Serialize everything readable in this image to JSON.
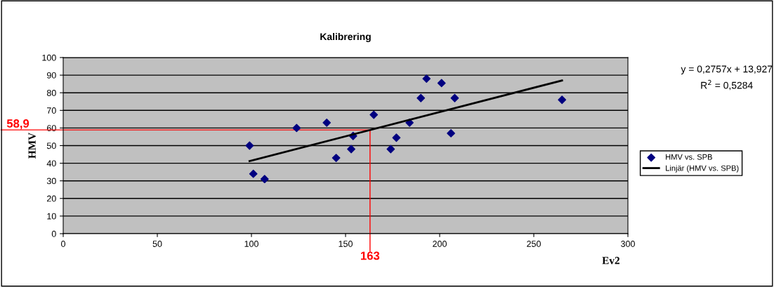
{
  "chart_data": {
    "type": "scatter",
    "title": "Kalibrering",
    "xlabel": "Ev2",
    "ylabel": "HMV",
    "xlim": [
      0,
      300
    ],
    "xticks": [
      0,
      50,
      100,
      150,
      200,
      250,
      300
    ],
    "ylim": [
      0,
      100
    ],
    "yticks": [
      0,
      10,
      20,
      30,
      40,
      50,
      60,
      70,
      80,
      90,
      100
    ],
    "grid": "y",
    "legend": "right",
    "series": [
      {
        "name": "HMV vs. SPB",
        "color": "#000080",
        "marker": "diamond",
        "x": [
          99,
          101,
          107,
          124,
          140,
          145,
          153,
          154,
          165,
          174,
          177,
          184,
          190,
          193,
          201,
          206,
          208,
          265
        ],
        "values": [
          50,
          34,
          31,
          60,
          63,
          43,
          48,
          55.5,
          67.5,
          48,
          54.5,
          63,
          77,
          88,
          85.5,
          57,
          77,
          76
        ]
      },
      {
        "name": "Linjär (HMV vs. SPB)",
        "color": "#000000",
        "type": "line",
        "x": [
          99,
          265
        ],
        "values": [
          41.2,
          87.0
        ]
      }
    ],
    "ref_lines": [
      {
        "axis": "y",
        "value": 58.9,
        "label": "58,9",
        "color": "#ff0000"
      },
      {
        "axis": "x",
        "value": 163,
        "label": "163",
        "color": "#ff0000"
      }
    ],
    "annotations": [
      "y = 0,2757x + 13,927",
      "R$^{2}$ = 0,5284"
    ]
  }
}
